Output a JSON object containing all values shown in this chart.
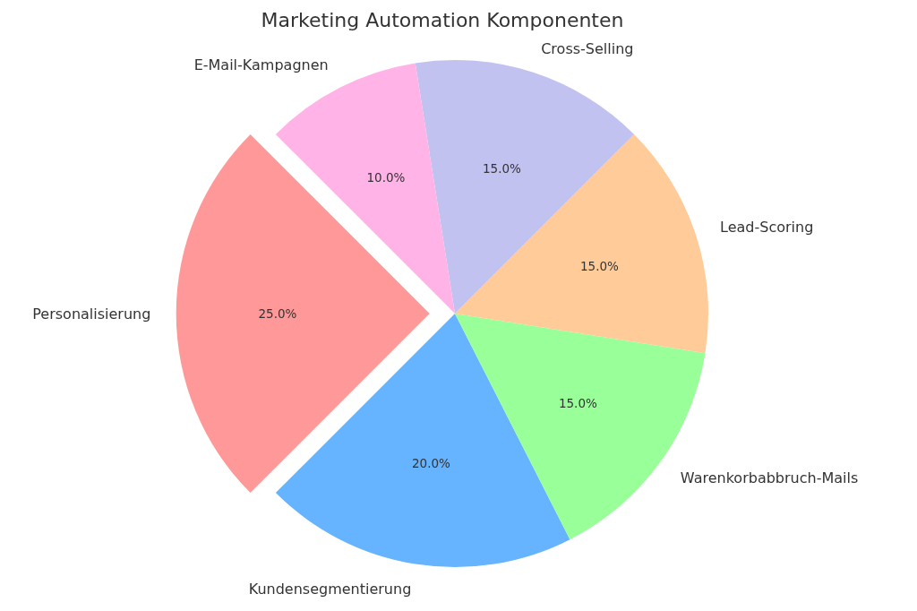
{
  "chart_data": {
    "type": "pie",
    "title": "Marketing Automation Komponenten",
    "categories": [
      "Personalisierung",
      "Kundensegmentierung",
      "Warenkorbabbruch-Mails",
      "Lead-Scoring",
      "Cross-Selling",
      "E-Mail-Kampagnen"
    ],
    "values": [
      25,
      20,
      15,
      15,
      15,
      10
    ],
    "value_labels": [
      "25.0%",
      "20.0%",
      "15.0%",
      "15.0%",
      "15.0%",
      "10.0%"
    ],
    "colors": [
      "#ff9999",
      "#66b3ff",
      "#99ff99",
      "#ffcc99",
      "#c2c2f0",
      "#ffb3e6"
    ],
    "legend": false
  }
}
